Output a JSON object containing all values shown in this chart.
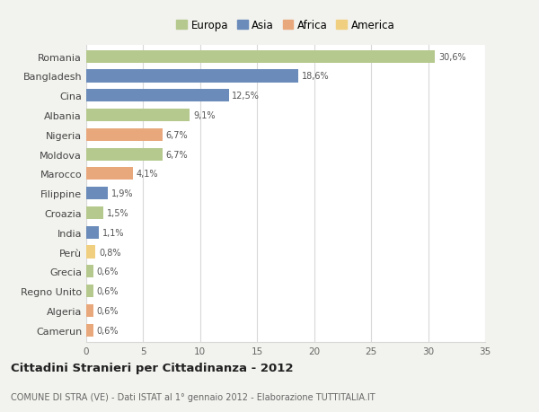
{
  "categories": [
    "Romania",
    "Bangladesh",
    "Cina",
    "Albania",
    "Nigeria",
    "Moldova",
    "Marocco",
    "Filippine",
    "Croazia",
    "India",
    "Perù",
    "Grecia",
    "Regno Unito",
    "Algeria",
    "Camerun"
  ],
  "values": [
    30.6,
    18.6,
    12.5,
    9.1,
    6.7,
    6.7,
    4.1,
    1.9,
    1.5,
    1.1,
    0.8,
    0.6,
    0.6,
    0.6,
    0.6
  ],
  "labels": [
    "30,6%",
    "18,6%",
    "12,5%",
    "9,1%",
    "6,7%",
    "6,7%",
    "4,1%",
    "1,9%",
    "1,5%",
    "1,1%",
    "0,8%",
    "0,6%",
    "0,6%",
    "0,6%",
    "0,6%"
  ],
  "colors": [
    "#b5c98e",
    "#6b8cba",
    "#6b8cba",
    "#b5c98e",
    "#e8a87c",
    "#b5c98e",
    "#e8a87c",
    "#6b8cba",
    "#b5c98e",
    "#6b8cba",
    "#f0d080",
    "#b5c98e",
    "#b5c98e",
    "#e8a87c",
    "#e8a87c"
  ],
  "continent_labels": [
    "Europa",
    "Asia",
    "Africa",
    "America"
  ],
  "continent_colors": [
    "#b5c98e",
    "#6b8cba",
    "#e8a87c",
    "#f0d080"
  ],
  "title": "Cittadini Stranieri per Cittadinanza - 2012",
  "subtitle": "COMUNE DI STRA (VE) - Dati ISTAT al 1° gennaio 2012 - Elaborazione TUTTITALIA.IT",
  "xlim": [
    0,
    35
  ],
  "xticks": [
    0,
    5,
    10,
    15,
    20,
    25,
    30,
    35
  ],
  "background_color": "#f2f2ee",
  "bar_background": "#ffffff",
  "grid_color": "#d8d8d8"
}
